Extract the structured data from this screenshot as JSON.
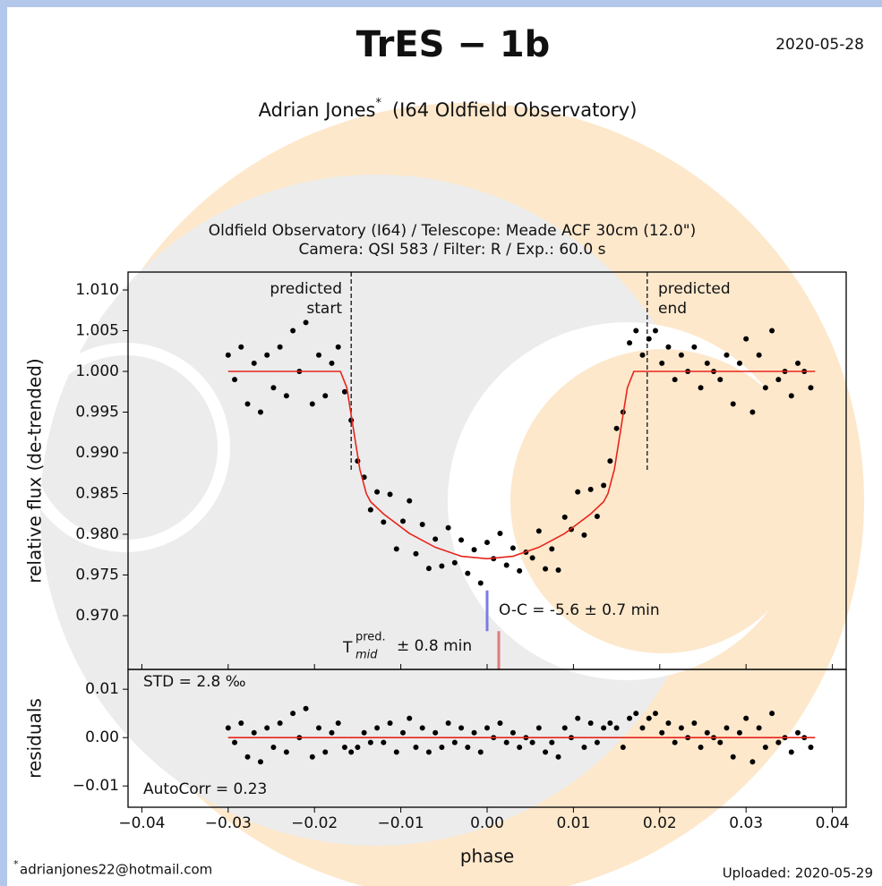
{
  "header": {
    "title": "TrES − 1b",
    "date": "2020-05-28",
    "author": "Adrian Jones",
    "author_mark": "*",
    "observatory": "(I64 Oldfield Observatory)"
  },
  "footer": {
    "mark": "*",
    "email": "adrianjones22@hotmail.com",
    "uploaded": "Uploaded: 2020-05-29"
  },
  "chart_data": [
    {
      "type": "scatter",
      "title": [
        "Oldfield Observatory (I64) / Telescope: Meade ACF 30cm (12.0\")",
        "Camera: QSI 583 / Filter: R / Exp.: 60.0 s"
      ],
      "ylabel": "relative flux (de-trended)",
      "xlim": [
        -0.0416,
        0.0416
      ],
      "ylim": [
        0.9634,
        1.0122
      ],
      "yticks": [
        {
          "value": 1.01,
          "label": "1.010"
        },
        1.005,
        {
          "value": 1.0,
          "label": "1.000"
        },
        0.995,
        {
          "value": 0.99,
          "label": "0.990"
        },
        0.985,
        {
          "value": 0.98,
          "label": "0.980"
        },
        0.975,
        {
          "value": 0.97,
          "label": "0.970"
        }
      ],
      "series": [
        {
          "mode": "markers",
          "color": "#000000",
          "x": [
            -0.03,
            -0.02925,
            -0.0285,
            -0.02775,
            -0.027,
            -0.02625,
            -0.0255,
            -0.02475,
            -0.024,
            -0.02325,
            -0.0225,
            -0.02175,
            -0.021,
            -0.02025,
            -0.0195,
            -0.01875,
            -0.018,
            -0.01725,
            -0.0165,
            -0.01575,
            -0.015,
            -0.01425,
            -0.0135,
            -0.01275,
            -0.012,
            -0.01125,
            -0.0105,
            -0.00975,
            -0.009,
            -0.00825,
            -0.0075,
            -0.00675,
            -0.006,
            -0.00525,
            -0.0045,
            -0.00375,
            -0.003,
            -0.00225,
            -0.0015,
            -0.00075,
            0,
            0.00075,
            0.0015,
            0.00225,
            0.003,
            0.00375,
            0.0045,
            0.00525,
            0.006,
            0.00675,
            0.0075,
            0.00825,
            0.009,
            0.00975,
            0.0105,
            0.01125,
            0.012,
            0.01275,
            0.0135,
            0.01425,
            0.015,
            0.01575,
            0.0165,
            0.01725,
            0.018,
            0.01875,
            0.0195,
            0.02025,
            0.021,
            0.02175,
            0.0225,
            0.02325,
            0.024,
            0.02475,
            0.0255,
            0.02625,
            0.027,
            0.02775,
            0.0285,
            0.02925,
            0.03,
            0.03075,
            0.0315,
            0.03225,
            0.033,
            0.03375,
            0.0345,
            0.03525,
            0.036,
            0.03675,
            0.0375
          ],
          "values": [
            1.002,
            0.999,
            1.003,
            0.996,
            1.001,
            0.995,
            1.002,
            0.998,
            1.003,
            0.997,
            1.005,
            1.0,
            1.006,
            0.996,
            1.002,
            0.997,
            1.001,
            1.003,
            0.9975,
            0.994,
            0.989,
            0.987,
            0.983,
            0.9852,
            0.9815,
            0.9849,
            0.9782,
            0.9816,
            0.9841,
            0.9776,
            0.9812,
            0.9758,
            0.9794,
            0.9761,
            0.9808,
            0.9765,
            0.9793,
            0.9752,
            0.9781,
            0.974,
            0.979,
            0.977,
            0.9801,
            0.9762,
            0.9783,
            0.9755,
            0.9778,
            0.9771,
            0.9804,
            0.97575,
            0.9782,
            0.9756,
            0.9821,
            0.9806,
            0.9852,
            0.9799,
            0.9855,
            0.9822,
            0.986,
            0.989,
            0.993,
            0.995,
            1.0035,
            1.005,
            1.002,
            1.004,
            1.005,
            1.001,
            1.003,
            0.999,
            1.002,
            1.0,
            1.003,
            0.998,
            1.001,
            1.0,
            0.999,
            1.002,
            0.996,
            1.001,
            1.004,
            0.995,
            1.002,
            0.998,
            1.005,
            0.999,
            1.0,
            0.997,
            1.001,
            1.0,
            0.998
          ]
        },
        {
          "mode": "line",
          "color": "#e8251c",
          "x": [
            -0.03,
            -0.017,
            -0.01625,
            -0.0155,
            -0.01475,
            -0.014,
            -0.0135,
            -0.012,
            -0.009,
            -0.006,
            -0.003,
            0,
            0.003,
            0.006,
            0.009,
            0.012,
            0.0135,
            0.014,
            0.01475,
            0.0155,
            0.01625,
            0.017,
            0.038
          ],
          "values": [
            1.0,
            1.0,
            0.998,
            0.993,
            0.988,
            0.985,
            0.984,
            0.9825,
            0.9801,
            0.9784,
            0.9773,
            0.977,
            0.9773,
            0.9784,
            0.9801,
            0.9825,
            0.984,
            0.985,
            0.988,
            0.993,
            0.998,
            1.0,
            1.0
          ]
        }
      ],
      "predicted_start": {
        "x": -0.01575,
        "y": [
          1.0122,
          0.9879
        ],
        "label": [
          "predicted",
          "start"
        ]
      },
      "predicted_end": {
        "x": 0.01855,
        "y": [
          1.0122,
          0.9879
        ],
        "label": [
          "predicted",
          "end"
        ]
      },
      "oc_marker": {
        "x": 0.0,
        "y": [
          0.9731,
          0.9681
        ],
        "color": "#7b7be0",
        "label": "O-C = -5.6 ± 0.7 min"
      },
      "tmid_marker": {
        "x": 0.00135,
        "y": [
          0.9681,
          0.9634
        ],
        "color": "#e07b7b",
        "base": "T",
        "sup": "pred.",
        "sub": "mid",
        "label": "± 0.8 min"
      }
    },
    {
      "type": "scatter",
      "ylabel": "residuals",
      "xlabel": "phase",
      "xlim": [
        -0.0416,
        0.0416
      ],
      "ylim": [
        -0.0144,
        0.0141
      ],
      "xticks": [
        {
          "value": -0.04,
          "label": "−0.04"
        },
        {
          "value": -0.03,
          "label": "−0.03"
        },
        {
          "value": -0.02,
          "label": "−0.02"
        },
        {
          "value": -0.01,
          "label": "−0.01"
        },
        {
          "value": 0,
          "label": "0.00"
        },
        0.01,
        0.02,
        0.03,
        0.04
      ],
      "yticks": [
        0.01,
        {
          "value": 0,
          "label": "0.00"
        },
        {
          "value": -0.01,
          "label": "−0.01"
        }
      ],
      "annotations": [
        "STD = 2.8 ‰",
        "AutoCorr = 0.23"
      ],
      "series": [
        {
          "mode": "markers",
          "color": "#000000",
          "x": [
            -0.03,
            -0.02925,
            -0.0285,
            -0.02775,
            -0.027,
            -0.02625,
            -0.0255,
            -0.02475,
            -0.024,
            -0.02325,
            -0.0225,
            -0.02175,
            -0.021,
            -0.02025,
            -0.0195,
            -0.01875,
            -0.018,
            -0.01725,
            -0.0165,
            -0.01575,
            -0.015,
            -0.01425,
            -0.0135,
            -0.01275,
            -0.012,
            -0.01125,
            -0.0105,
            -0.00975,
            -0.009,
            -0.00825,
            -0.0075,
            -0.00675,
            -0.006,
            -0.00525,
            -0.0045,
            -0.00375,
            -0.003,
            -0.00225,
            -0.0015,
            -0.00075,
            0,
            0.00075,
            0.0015,
            0.00225,
            0.003,
            0.00375,
            0.0045,
            0.00525,
            0.006,
            0.00675,
            0.0075,
            0.00825,
            0.009,
            0.00975,
            0.0105,
            0.01125,
            0.012,
            0.01275,
            0.0135,
            0.01425,
            0.015,
            0.01575,
            0.0165,
            0.01725,
            0.018,
            0.01875,
            0.0195,
            0.02025,
            0.021,
            0.02175,
            0.0225,
            0.02325,
            0.024,
            0.02475,
            0.0255,
            0.02625,
            0.027,
            0.02775,
            0.0285,
            0.02925,
            0.03,
            0.03075,
            0.0315,
            0.03225,
            0.033,
            0.03375,
            0.0345,
            0.03525,
            0.036,
            0.03675,
            0.0375
          ],
          "values": [
            0.002,
            -0.001,
            0.003,
            -0.004,
            0.001,
            -0.005,
            0.002,
            -0.002,
            0.003,
            -0.003,
            0.005,
            0,
            0.006,
            -0.004,
            0.002,
            -0.003,
            0.001,
            0.003,
            -0.002,
            -0.003,
            -0.002,
            0.001,
            -0.001,
            0.002,
            -0.001,
            0.003,
            -0.003,
            0.001,
            0.004,
            -0.002,
            0.002,
            -0.003,
            0.001,
            -0.002,
            0.003,
            -0.001,
            0.002,
            -0.002,
            0.001,
            -0.003,
            0.002,
            0,
            0.003,
            -0.001,
            0.001,
            -0.002,
            0,
            -0.001,
            0.002,
            -0.003,
            -0.001,
            -0.004,
            0.002,
            0,
            0.004,
            -0.002,
            0.003,
            -0.001,
            0.002,
            0.003,
            0.002,
            -0.002,
            0.004,
            0.005,
            0.002,
            0.004,
            0.005,
            0.001,
            0.003,
            -0.001,
            0.002,
            0,
            0.003,
            -0.002,
            0.001,
            0,
            -0.001,
            0.002,
            -0.004,
            0.001,
            0.004,
            -0.005,
            0.002,
            -0.002,
            0.005,
            -0.001,
            0,
            -0.003,
            0.001,
            0,
            -0.002
          ]
        },
        {
          "mode": "line",
          "color": "#e8251c",
          "x": [
            -0.03,
            0.038
          ],
          "values": [
            0,
            0
          ]
        }
      ]
    }
  ]
}
